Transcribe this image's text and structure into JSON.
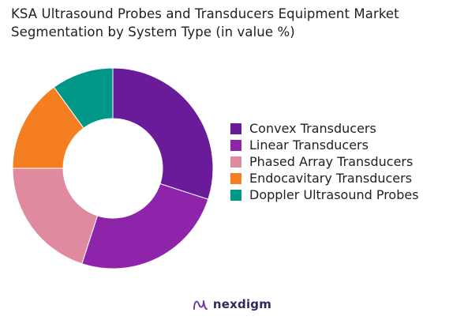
{
  "header": {
    "title_line1": "KSA Ultrasound Probes and Transducers Equipment Market",
    "title_line2": "Segmentation by System Type (in value %)"
  },
  "chart_data": {
    "type": "pie",
    "variant": "donut",
    "title": "KSA Ultrasound Probes and Transducers Equipment Market Segmentation by System Type (in value %)",
    "legend_placement": "right",
    "categories": [
      "Convex Transducers",
      "Linear Transducers",
      "Phased Array Transducers",
      "Endocavitary Transducers",
      "Doppler Ultrasound Probes"
    ],
    "values": [
      30,
      25,
      20,
      15,
      10
    ],
    "colors": [
      "#6a1b9a",
      "#8e24aa",
      "#e08aa0",
      "#f57f20",
      "#009688"
    ]
  },
  "brand": {
    "name": "nexdigm",
    "logo_icon": "nexdigm-logo-icon",
    "color": "#2f2a5e"
  }
}
